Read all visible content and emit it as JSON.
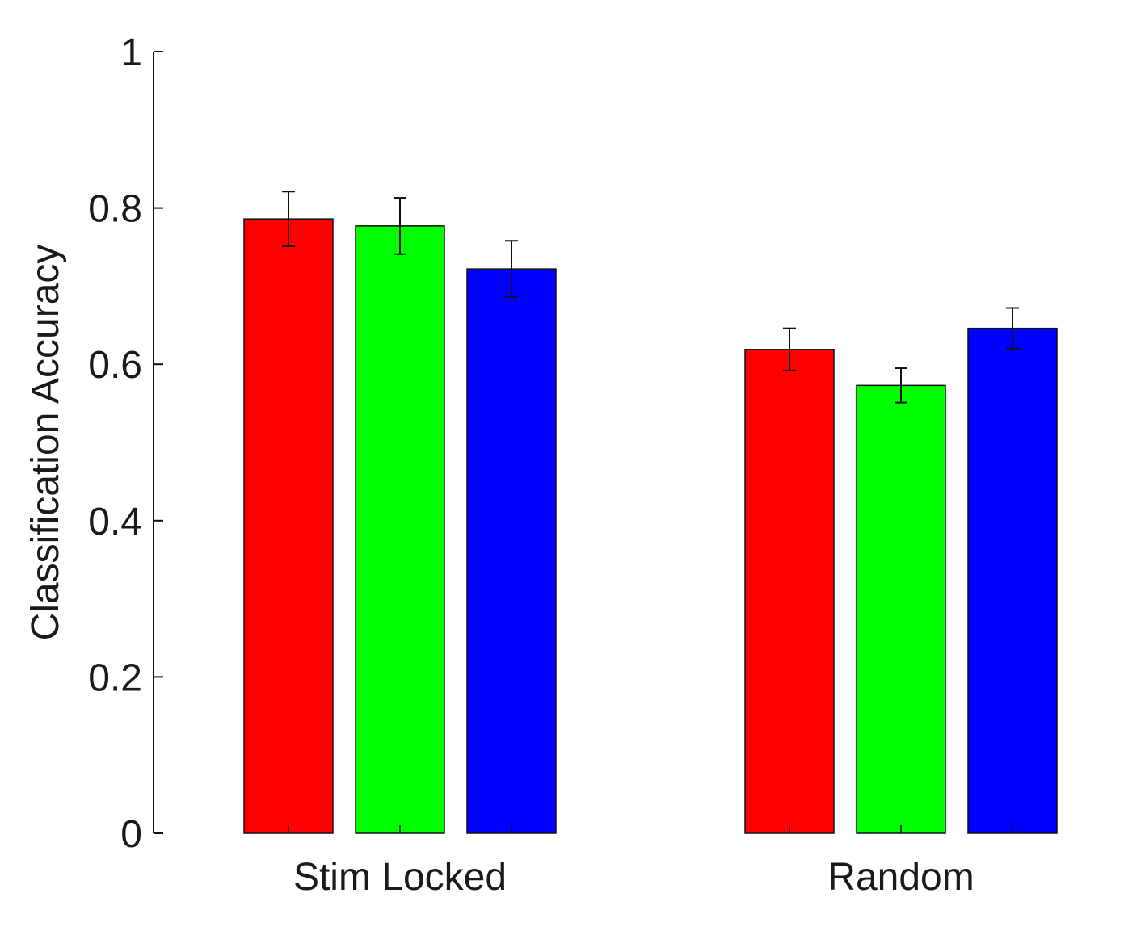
{
  "chart_data": {
    "type": "bar",
    "title": "",
    "xlabel": "",
    "ylabel": "Classification Accuracy",
    "ylim": [
      0,
      1
    ],
    "yticks": [
      0,
      0.2,
      0.4,
      0.6,
      0.8,
      1
    ],
    "ytick_labels": [
      "0",
      "0.2",
      "0.4",
      "0.6",
      "0.8",
      "1"
    ],
    "categories": [
      "Stim Locked",
      "Random"
    ],
    "series": [
      {
        "name": "red",
        "color": "#ff0000",
        "values": [
          0.786,
          0.619
        ],
        "errors": [
          0.035,
          0.027
        ]
      },
      {
        "name": "green",
        "color": "#00ff00",
        "values": [
          0.777,
          0.573
        ],
        "errors": [
          0.036,
          0.022
        ]
      },
      {
        "name": "blue",
        "color": "#0000ff",
        "values": [
          0.722,
          0.646
        ],
        "errors": [
          0.036,
          0.026
        ]
      }
    ]
  }
}
